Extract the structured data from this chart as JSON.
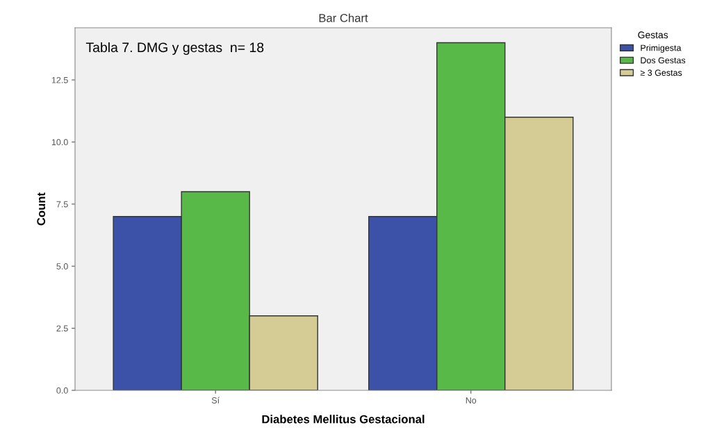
{
  "chart_data": {
    "type": "bar",
    "title": "Bar Chart",
    "xlabel": "Diabetes Mellitus Gestacional",
    "ylabel": "Count",
    "legend_title": "Gestas",
    "categories": [
      "Sí",
      "No"
    ],
    "series": [
      {
        "name": "Primigesta",
        "color": "#3c52a8",
        "values": [
          7,
          7
        ]
      },
      {
        "name": "Dos Gestas",
        "color": "#58b848",
        "values": [
          8,
          14
        ]
      },
      {
        "name": "≥ 3 Gestas",
        "color": "#d4cc94",
        "values": [
          3,
          11
        ]
      }
    ],
    "ylim": [
      0,
      14.6
    ],
    "yticks": [
      {
        "value": 0,
        "label": "0.0"
      },
      2.5,
      {
        "value": 5,
        "label": "5.0"
      },
      7.5,
      {
        "value": 10,
        "label": "10.0"
      },
      12.5
    ],
    "grid": false,
    "legend": "top right",
    "annotations": [
      "Tabla 7. DMG y gestas  n= 18"
    ]
  }
}
